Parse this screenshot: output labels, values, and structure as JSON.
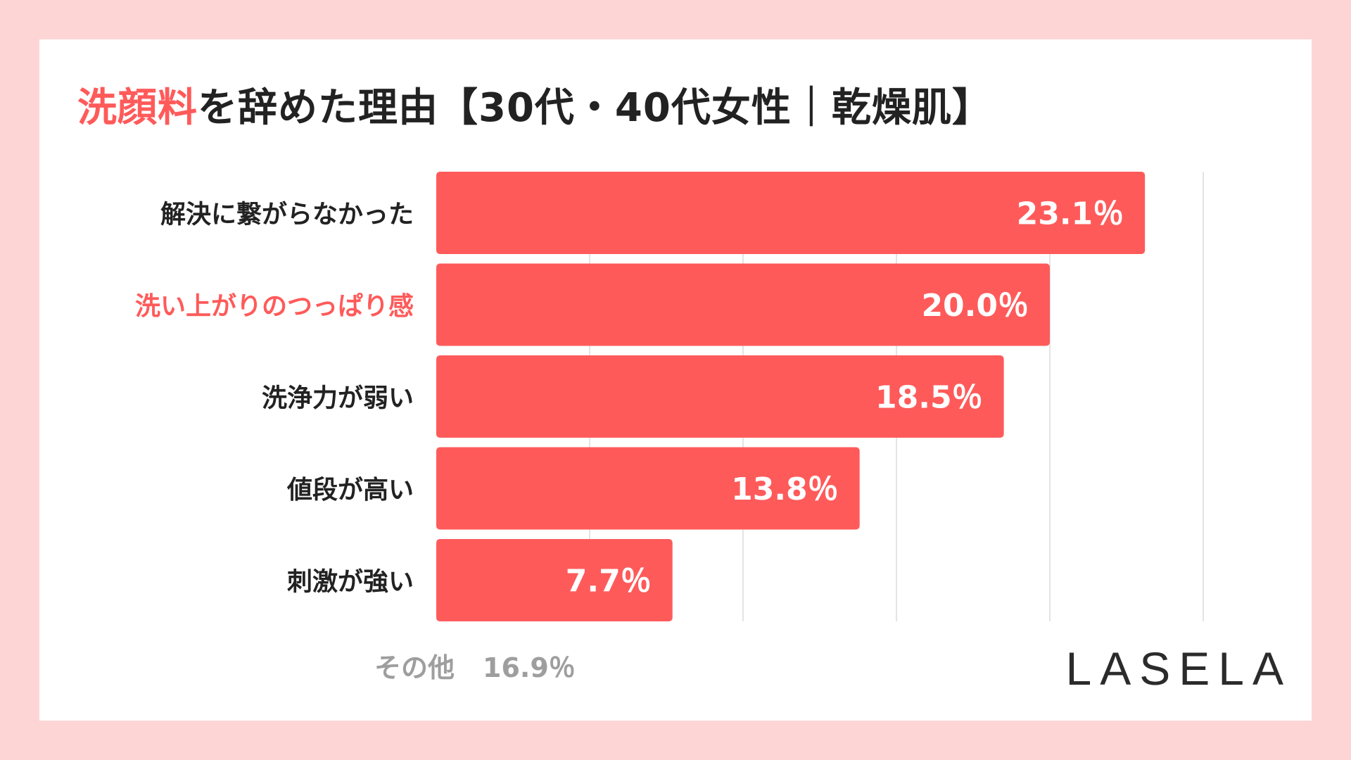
{
  "title": {
    "highlight": "洗顔料",
    "rest": "を辞めた理由【30代・40代女性｜乾燥肌】"
  },
  "colors": {
    "background": "#fdd5d5",
    "bar": "#ff5a5a",
    "highlight_text": "#ff5a5a",
    "label_text": "#222222",
    "muted_text": "#9e9e9e",
    "grid": "#dcdcdc"
  },
  "chart_data": {
    "type": "bar",
    "orientation": "horizontal",
    "categories": [
      "解決に繋がらなかった",
      "洗い上がりのつっぱり感",
      "洗浄力が弱い",
      "値段が高い",
      "刺激が強い"
    ],
    "values": [
      23.1,
      20.0,
      18.5,
      13.8,
      7.7
    ],
    "value_labels": [
      "23.1％",
      "20.0％",
      "18.5％",
      "13.8％",
      "7.7％"
    ],
    "highlighted_category": "洗い上がりのつっぱり感",
    "xlim": [
      0,
      25
    ],
    "grid": true
  },
  "other": {
    "label": "その他",
    "value": "16.9％"
  },
  "brand": "LASELA"
}
